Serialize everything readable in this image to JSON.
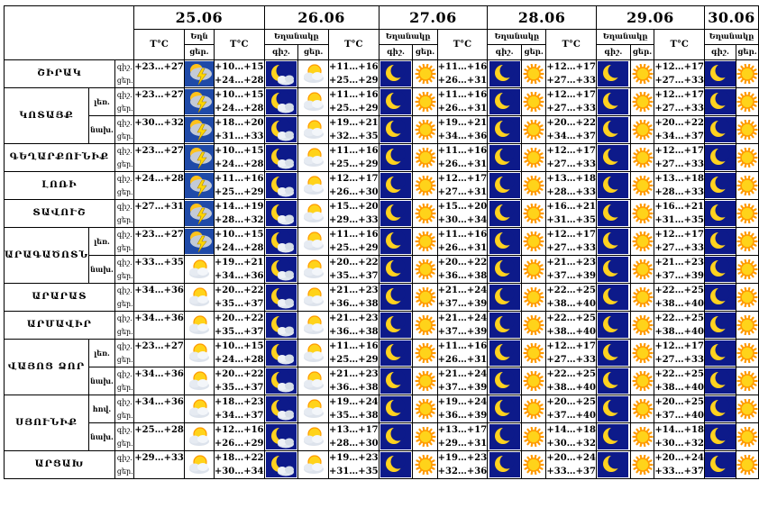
{
  "header": {
    "temp_label": "T°C",
    "weather_label": "Եղանակը",
    "weather_label_short": "Եղն",
    "day_label": "ցեր.",
    "night_label": "գիշ.",
    "dates": [
      "25.06",
      "26.06",
      "27.06",
      "28.06",
      "29.06",
      "30.06"
    ]
  },
  "row_labels": {
    "night": "գիշ.",
    "day": "ցեր."
  },
  "colors": {
    "night_bg": "#0d1a8a",
    "moon": "#ffd21f",
    "sun": "#ff9a00",
    "sun_core": "#ffd31a",
    "cloud": "#e6ebf2",
    "lightning": "#ffd700",
    "border": "#000000"
  },
  "rows": [
    {
      "region": "ՇԻՐԱԿ",
      "sub": "",
      "days": [
        {
          "night": "+23…+27",
          "day": "",
          "icons": [
            "storm"
          ]
        },
        {
          "night": "+10…+15",
          "day": "+24…+28",
          "icons": [
            "moon-cloud",
            "sun-cloud"
          ]
        },
        {
          "night": "+11…+16",
          "day": "+25…+29",
          "icons": [
            "moon",
            "sun"
          ]
        },
        {
          "night": "+11…+16",
          "day": "+26…+31",
          "icons": [
            "moon",
            "sun"
          ]
        },
        {
          "night": "+12…+17",
          "day": "+27…+33",
          "icons": [
            "moon",
            "sun"
          ]
        },
        {
          "night": "+12…+17",
          "day": "+27…+33",
          "icons": [
            "moon",
            "sun"
          ]
        }
      ]
    },
    {
      "region": "ԿՈՏԱՅՔ",
      "sub": "լեռ.",
      "days": [
        {
          "night": "+23…+27",
          "day": "",
          "icons": [
            "storm"
          ]
        },
        {
          "night": "+10…+15",
          "day": "+24…+28",
          "icons": [
            "moon-cloud",
            "sun-cloud"
          ]
        },
        {
          "night": "+11…+16",
          "day": "+25…+29",
          "icons": [
            "moon",
            "sun"
          ]
        },
        {
          "night": "+11…+16",
          "day": "+26…+31",
          "icons": [
            "moon",
            "sun"
          ]
        },
        {
          "night": "+12…+17",
          "day": "+27…+33",
          "icons": [
            "moon",
            "sun"
          ]
        },
        {
          "night": "+12…+17",
          "day": "+27…+33",
          "icons": [
            "moon",
            "sun"
          ]
        }
      ]
    },
    {
      "region": "",
      "sub": "նախ.",
      "days": [
        {
          "night": "+30…+32",
          "day": "",
          "icons": [
            "storm"
          ]
        },
        {
          "night": "+18…+20",
          "day": "+31…+33",
          "icons": [
            "moon-cloud",
            "sun-cloud"
          ]
        },
        {
          "night": "+19…+21",
          "day": "+32…+35",
          "icons": [
            "moon",
            "sun"
          ]
        },
        {
          "night": "+19…+21",
          "day": "+34…+36",
          "icons": [
            "moon",
            "sun"
          ]
        },
        {
          "night": "+20…+22",
          "day": "+34…+37",
          "icons": [
            "moon",
            "sun"
          ]
        },
        {
          "night": "+20…+22",
          "day": "+34…+37",
          "icons": [
            "moon",
            "sun"
          ]
        }
      ]
    },
    {
      "region": "ԳԵՂԱՐՔՈՒՆԻՔ",
      "sub": "",
      "days": [
        {
          "night": "+23…+27",
          "day": "",
          "icons": [
            "storm"
          ]
        },
        {
          "night": "+10…+15",
          "day": "+24…+28",
          "icons": [
            "moon-cloud",
            "sun-cloud"
          ]
        },
        {
          "night": "+11…+16",
          "day": "+25…+29",
          "icons": [
            "moon",
            "sun"
          ]
        },
        {
          "night": "+11…+16",
          "day": "+26…+31",
          "icons": [
            "moon",
            "sun"
          ]
        },
        {
          "night": "+12…+17",
          "day": "+27…+33",
          "icons": [
            "moon",
            "sun"
          ]
        },
        {
          "night": "+12…+17",
          "day": "+27…+33",
          "icons": [
            "moon",
            "sun"
          ]
        }
      ]
    },
    {
      "region": "ԼՈՌԻ",
      "sub": "",
      "days": [
        {
          "night": "+24…+28",
          "day": "",
          "icons": [
            "storm"
          ]
        },
        {
          "night": "+11…+16",
          "day": "+25…+29",
          "icons": [
            "moon-cloud",
            "sun-cloud"
          ]
        },
        {
          "night": "+12…+17",
          "day": "+26…+30",
          "icons": [
            "moon",
            "sun"
          ]
        },
        {
          "night": "+12…+17",
          "day": "+27…+31",
          "icons": [
            "moon",
            "sun"
          ]
        },
        {
          "night": "+13…+18",
          "day": "+28…+33",
          "icons": [
            "moon",
            "sun"
          ]
        },
        {
          "night": "+13…+18",
          "day": "+28…+33",
          "icons": [
            "moon",
            "sun"
          ]
        }
      ]
    },
    {
      "region": "ՏԱՎՈՒՇ",
      "sub": "",
      "days": [
        {
          "night": "+27…+31",
          "day": "",
          "icons": [
            "storm"
          ]
        },
        {
          "night": "+14…+19",
          "day": "+28…+32",
          "icons": [
            "moon-cloud",
            "sun-cloud"
          ]
        },
        {
          "night": "+15…+20",
          "day": "+29…+33",
          "icons": [
            "moon",
            "sun"
          ]
        },
        {
          "night": "+15…+20",
          "day": "+30…+34",
          "icons": [
            "moon",
            "sun"
          ]
        },
        {
          "night": "+16…+21",
          "day": "+31…+35",
          "icons": [
            "moon",
            "sun"
          ]
        },
        {
          "night": "+16…+21",
          "day": "+31…+35",
          "icons": [
            "moon",
            "sun"
          ]
        }
      ]
    },
    {
      "region": "ԱՐԱԳԱԾՈՏՆ",
      "sub": "լեռ.",
      "days": [
        {
          "night": "+23…+27",
          "day": "",
          "icons": [
            "storm"
          ]
        },
        {
          "night": "+10…+15",
          "day": "+24…+28",
          "icons": [
            "moon-cloud",
            "sun-cloud"
          ]
        },
        {
          "night": "+11…+16",
          "day": "+25…+29",
          "icons": [
            "moon",
            "sun"
          ]
        },
        {
          "night": "+11…+16",
          "day": "+26…+31",
          "icons": [
            "moon",
            "sun"
          ]
        },
        {
          "night": "+12…+17",
          "day": "+27…+33",
          "icons": [
            "moon",
            "sun"
          ]
        },
        {
          "night": "+12…+17",
          "day": "+27…+33",
          "icons": [
            "moon",
            "sun"
          ]
        }
      ]
    },
    {
      "region": "",
      "sub": "նախ.",
      "days": [
        {
          "night": "+33…+35",
          "day": "",
          "icons": [
            "sun-cloud"
          ]
        },
        {
          "night": "+19…+21",
          "day": "+34…+36",
          "icons": [
            "moon-cloud",
            "sun-cloud"
          ]
        },
        {
          "night": "+20…+22",
          "day": "+35…+37",
          "icons": [
            "moon",
            "sun"
          ]
        },
        {
          "night": "+20…+22",
          "day": "+36…+38",
          "icons": [
            "moon",
            "sun"
          ]
        },
        {
          "night": "+21…+23",
          "day": "+37…+39",
          "icons": [
            "moon",
            "sun"
          ]
        },
        {
          "night": "+21…+23",
          "day": "+37…+39",
          "icons": [
            "moon",
            "sun"
          ]
        }
      ]
    },
    {
      "region": "ԱՐԱՐԱՏ",
      "sub": "",
      "days": [
        {
          "night": "+34…+36",
          "day": "",
          "icons": [
            "sun-cloud"
          ]
        },
        {
          "night": "+20…+22",
          "day": "+35…+37",
          "icons": [
            "moon-cloud",
            "sun-cloud"
          ]
        },
        {
          "night": "+21…+23",
          "day": "+36…+38",
          "icons": [
            "moon",
            "sun"
          ]
        },
        {
          "night": "+21…+24",
          "day": "+37…+39",
          "icons": [
            "moon",
            "sun"
          ]
        },
        {
          "night": "+22…+25",
          "day": "+38…+40",
          "icons": [
            "moon",
            "sun"
          ]
        },
        {
          "night": "+22…+25",
          "day": "+38…+40",
          "icons": [
            "moon",
            "sun"
          ]
        }
      ]
    },
    {
      "region": "ԱՐՄԱՎԻՐ",
      "sub": "",
      "days": [
        {
          "night": "+34…+36",
          "day": "",
          "icons": [
            "sun-cloud"
          ]
        },
        {
          "night": "+20…+22",
          "day": "+35…+37",
          "icons": [
            "moon-cloud",
            "sun-cloud"
          ]
        },
        {
          "night": "+21…+23",
          "day": "+36…+38",
          "icons": [
            "moon",
            "sun"
          ]
        },
        {
          "night": "+21…+24",
          "day": "+37…+39",
          "icons": [
            "moon",
            "sun"
          ]
        },
        {
          "night": "+22…+25",
          "day": "+38…+40",
          "icons": [
            "moon",
            "sun"
          ]
        },
        {
          "night": "+22…+25",
          "day": "+38…+40",
          "icons": [
            "moon",
            "sun"
          ]
        }
      ]
    },
    {
      "region": "ՎԱՅՈՑ ՁՈՐ",
      "sub": "լեռ.",
      "days": [
        {
          "night": "+23…+27",
          "day": "",
          "icons": [
            "sun-cloud"
          ]
        },
        {
          "night": "+10…+15",
          "day": "+24…+28",
          "icons": [
            "moon-cloud",
            "sun-cloud"
          ]
        },
        {
          "night": "+11…+16",
          "day": "+25…+29",
          "icons": [
            "moon",
            "sun"
          ]
        },
        {
          "night": "+11…+16",
          "day": "+26…+31",
          "icons": [
            "moon",
            "sun"
          ]
        },
        {
          "night": "+12…+17",
          "day": "+27…+33",
          "icons": [
            "moon",
            "sun"
          ]
        },
        {
          "night": "+12…+17",
          "day": "+27…+33",
          "icons": [
            "moon",
            "sun"
          ]
        }
      ]
    },
    {
      "region": "",
      "sub": "նախ.",
      "days": [
        {
          "night": "+34…+36",
          "day": "",
          "icons": [
            "sun-cloud"
          ]
        },
        {
          "night": "+20…+22",
          "day": "+35…+37",
          "icons": [
            "moon-cloud",
            "sun-cloud"
          ]
        },
        {
          "night": "+21…+23",
          "day": "+36…+38",
          "icons": [
            "moon",
            "sun"
          ]
        },
        {
          "night": "+21…+24",
          "day": "+37…+39",
          "icons": [
            "moon",
            "sun"
          ]
        },
        {
          "night": "+22…+25",
          "day": "+38…+40",
          "icons": [
            "moon",
            "sun"
          ]
        },
        {
          "night": "+22…+25",
          "day": "+38…+40",
          "icons": [
            "moon",
            "sun"
          ]
        }
      ]
    },
    {
      "region": "ՍՅՈՒՆԻՔ",
      "sub": "հով.",
      "days": [
        {
          "night": "+34…+36",
          "day": "",
          "icons": [
            "sun-cloud"
          ]
        },
        {
          "night": "+18…+23",
          "day": "+34…+37",
          "icons": [
            "moon-cloud",
            "sun-cloud"
          ]
        },
        {
          "night": "+19…+24",
          "day": "+35…+38",
          "icons": [
            "moon",
            "sun"
          ]
        },
        {
          "night": "+19…+24",
          "day": "+36…+39",
          "icons": [
            "moon",
            "sun"
          ]
        },
        {
          "night": "+20…+25",
          "day": "+37…+40",
          "icons": [
            "moon",
            "sun"
          ]
        },
        {
          "night": "+20…+25",
          "day": "+37…+40",
          "icons": [
            "moon",
            "sun"
          ]
        }
      ]
    },
    {
      "region": "",
      "sub": "նախ.",
      "days": [
        {
          "night": "+25…+28",
          "day": "",
          "icons": [
            "sun-cloud"
          ]
        },
        {
          "night": "+12…+16",
          "day": "+26…+29",
          "icons": [
            "moon-cloud",
            "sun-cloud"
          ]
        },
        {
          "night": "+13…+17",
          "day": "+28…+30",
          "icons": [
            "moon",
            "sun"
          ]
        },
        {
          "night": "+13…+17",
          "day": "+29…+31",
          "icons": [
            "moon",
            "sun"
          ]
        },
        {
          "night": "+14…+18",
          "day": "+30…+32",
          "icons": [
            "moon",
            "sun"
          ]
        },
        {
          "night": "+14…+18",
          "day": "+30…+32",
          "icons": [
            "moon",
            "sun"
          ]
        }
      ]
    },
    {
      "region": "ԱՐՑԱԽ",
      "sub": "",
      "days": [
        {
          "night": "+29…+33",
          "day": "",
          "icons": [
            "sun-cloud"
          ]
        },
        {
          "night": "+18…+22",
          "day": "+30…+34",
          "icons": [
            "moon-cloud",
            "sun-cloud"
          ]
        },
        {
          "night": "+19…+23",
          "day": "+31…+35",
          "icons": [
            "moon",
            "sun"
          ]
        },
        {
          "night": "+19…+23",
          "day": "+32…+36",
          "icons": [
            "moon",
            "sun"
          ]
        },
        {
          "night": "+20…+24",
          "day": "+33…+37",
          "icons": [
            "moon",
            "sun"
          ]
        },
        {
          "night": "+20…+24",
          "day": "+33…+37",
          "icons": [
            "moon",
            "sun"
          ]
        }
      ]
    }
  ]
}
